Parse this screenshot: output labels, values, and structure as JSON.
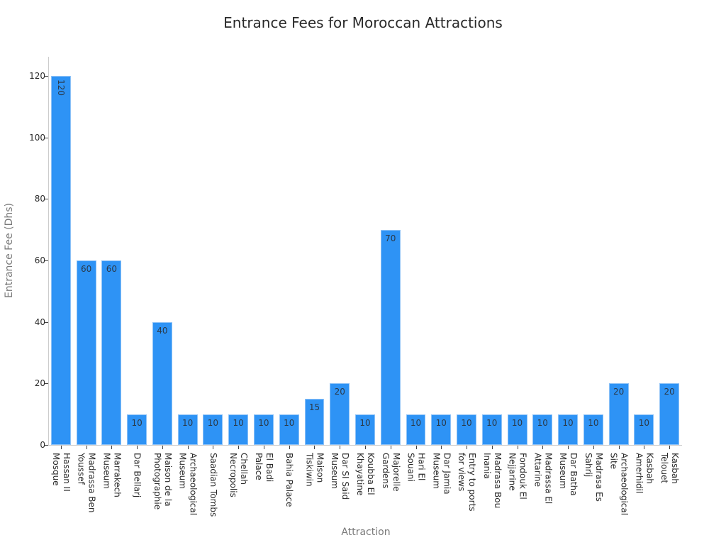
{
  "chart_data": {
    "type": "bar",
    "title": "Entrance Fees for Moroccan Attractions",
    "xlabel": "Attraction",
    "ylabel": "Entrance Fee (Dhs)",
    "ylim": [
      0,
      126
    ],
    "yticks": [
      0,
      20,
      40,
      60,
      80,
      100,
      120
    ],
    "grid": false,
    "legend": null,
    "bar_color": "#2e93f5",
    "categories": [
      "Hassan II Mosque",
      "Madrassa Ben Youssef",
      "Marrakech Museum",
      "Dar Bellarj",
      "Maison de la Photographie",
      "Archaeological Museum",
      "Saadian Tombs",
      "Chellah Necropolis",
      "El Badi Palace",
      "Bahia Palace",
      "Maison Tiskiwin",
      "Dar SI Said Museum",
      "Koubba El Khayatine",
      "Majorelle Gardens",
      "Hari El Souani",
      "Dar Jamia Museum",
      "Entry to ports for views",
      "Madrasa Bou Inania",
      "Fondouk El Nejjarine",
      "Madrassa El Attarine",
      "Dar Batha Museum",
      "Madrasa Es Sahrij",
      "Archaeological Site",
      "Kasbah Amerhidil",
      "Kasbah Telouet"
    ],
    "tick_lines": [
      [
        "Hassan II",
        "Mosque"
      ],
      [
        "Madrassa Ben",
        "Youssef"
      ],
      [
        "Marrakech",
        "Museum"
      ],
      [
        "Dar Bellarj"
      ],
      [
        "Maison de la",
        "Photographie"
      ],
      [
        "Archaeological",
        "Museum"
      ],
      [
        "Saadian Tombs"
      ],
      [
        "Chellah",
        "Necropolis"
      ],
      [
        "El Badi",
        "Palace"
      ],
      [
        "Bahia Palace"
      ],
      [
        "Maison",
        "Tiskiwin"
      ],
      [
        "Dar SI Said",
        "Museum"
      ],
      [
        "Koubba El",
        "Khayatine"
      ],
      [
        "Majorelle",
        "Gardens"
      ],
      [
        "Hari El",
        "Souani"
      ],
      [
        "Dar Jamia",
        "Museum"
      ],
      [
        "Entry to ports",
        "for views"
      ],
      [
        "Madrasa Bou",
        "Inania"
      ],
      [
        "Fondouk El",
        "Nejjarine"
      ],
      [
        "Madrassa El",
        "Attarine"
      ],
      [
        "Dar Batha",
        "Museum"
      ],
      [
        "Madrasa Es",
        "Sahrij"
      ],
      [
        "Archaeological",
        "Site"
      ],
      [
        "Kasbah",
        "Amerhidil"
      ],
      [
        "Kasbah",
        "Telouet"
      ]
    ],
    "values": [
      120,
      60,
      60,
      10,
      40,
      10,
      10,
      10,
      10,
      10,
      15,
      20,
      10,
      70,
      10,
      10,
      10,
      10,
      10,
      10,
      10,
      10,
      20,
      10,
      20
    ],
    "data_labels": [
      "120",
      "60",
      "60",
      "10",
      "40",
      "10",
      "10",
      "10",
      "10",
      "10",
      "15",
      "20",
      "10",
      "70",
      "10",
      "10",
      "10",
      "10",
      "10",
      "10",
      "10",
      "10",
      "20",
      "10",
      "20"
    ]
  }
}
